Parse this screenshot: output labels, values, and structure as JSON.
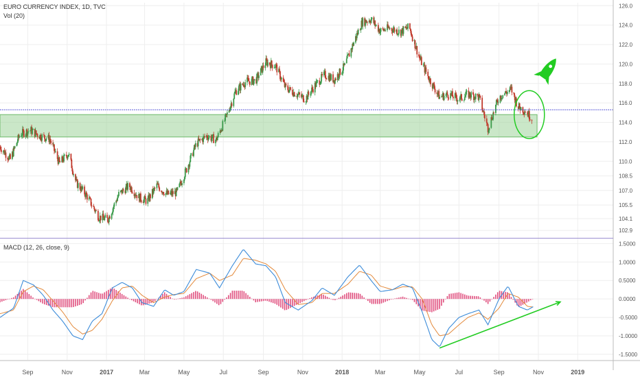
{
  "header": {
    "symbol_line": "EURO CURRENCY INDEX, 1D, TVC",
    "volume_line": "Vol (20)"
  },
  "indicator": {
    "label": "MACD (12, 26, close, 9)"
  },
  "colors": {
    "up_candle": "#3a9a4a",
    "down_candle": "#c0392b",
    "support_zone": "#9fd39a",
    "support_zone_border": "#6db96a",
    "resistance_line": "#5b5bd6",
    "macd_line": "#3b8bd9",
    "signal_line": "#e3893a",
    "histogram": "#e0507f",
    "annotation": "#22cc22",
    "grid": "#eeeeee"
  },
  "chart_data": [
    {
      "type": "candlestick",
      "title": "EURO CURRENCY INDEX, 1D, TVC",
      "ylim": [
        102.2,
        126.3
      ],
      "y_ticks": [
        "126.0",
        "124.0",
        "122.0",
        "120.0",
        "118.0",
        "116.0",
        "114.0",
        "112.0",
        "110.0",
        "108.5",
        "107.0",
        "105.5",
        "104.1",
        "102.9"
      ],
      "y_tick_values": [
        126.0,
        124.0,
        122.0,
        120.0,
        118.0,
        116.0,
        114.0,
        112.0,
        110.0,
        108.5,
        107.0,
        105.5,
        104.1,
        102.9
      ],
      "x_ticks": [
        "Sep",
        "Nov",
        "2017",
        "Mar",
        "May",
        "Jul",
        "Sep",
        "Nov",
        "2018",
        "Mar",
        "May",
        "Jul",
        "Sep",
        "Nov",
        "2019"
      ],
      "x_tick_dates": [
        "2016-09-01",
        "2016-11-01",
        "2017-01-01",
        "2017-03-01",
        "2017-05-01",
        "2017-07-01",
        "2017-09-01",
        "2017-11-01",
        "2018-01-01",
        "2018-03-01",
        "2018-05-01",
        "2018-07-01",
        "2018-09-01",
        "2018-11-01",
        "2019-01-01"
      ],
      "x_range": [
        "2016-07-20",
        "2019-02-25"
      ],
      "trend_points": [
        [
          "2016-07-20",
          111.5
        ],
        [
          "2016-08-05",
          110.2
        ],
        [
          "2016-08-20",
          112.8
        ],
        [
          "2016-09-05",
          113.2
        ],
        [
          "2016-09-20",
          112.6
        ],
        [
          "2016-10-05",
          112.3
        ],
        [
          "2016-10-20",
          109.8
        ],
        [
          "2016-11-03",
          110.8
        ],
        [
          "2016-11-15",
          107.8
        ],
        [
          "2016-12-01",
          106.5
        ],
        [
          "2016-12-20",
          104.3
        ],
        [
          "2017-01-03",
          104.0
        ],
        [
          "2017-01-20",
          106.6
        ],
        [
          "2017-02-05",
          107.5
        ],
        [
          "2017-02-20",
          106.3
        ],
        [
          "2017-03-05",
          105.9
        ],
        [
          "2017-03-20",
          107.5
        ],
        [
          "2017-04-05",
          106.6
        ],
        [
          "2017-04-20",
          106.8
        ],
        [
          "2017-05-05",
          109.2
        ],
        [
          "2017-05-20",
          111.8
        ],
        [
          "2017-06-05",
          112.6
        ],
        [
          "2017-06-20",
          112.2
        ],
        [
          "2017-07-05",
          114.5
        ],
        [
          "2017-07-20",
          117.2
        ],
        [
          "2017-08-05",
          118.2
        ],
        [
          "2017-08-20",
          118.3
        ],
        [
          "2017-09-05",
          120.2
        ],
        [
          "2017-09-20",
          119.8
        ],
        [
          "2017-10-05",
          117.6
        ],
        [
          "2017-10-20",
          117.0
        ],
        [
          "2017-11-05",
          116.4
        ],
        [
          "2017-11-20",
          117.8
        ],
        [
          "2017-12-05",
          118.9
        ],
        [
          "2017-12-20",
          118.4
        ],
        [
          "2018-01-05",
          119.8
        ],
        [
          "2018-01-20",
          122.4
        ],
        [
          "2018-02-01",
          124.3
        ],
        [
          "2018-02-15",
          124.6
        ],
        [
          "2018-03-01",
          123.4
        ],
        [
          "2018-03-15",
          123.7
        ],
        [
          "2018-04-01",
          123.3
        ],
        [
          "2018-04-15",
          123.8
        ],
        [
          "2018-05-01",
          120.6
        ],
        [
          "2018-05-15",
          118.6
        ],
        [
          "2018-06-01",
          116.6
        ],
        [
          "2018-06-15",
          116.9
        ],
        [
          "2018-07-01",
          116.4
        ],
        [
          "2018-07-15",
          116.9
        ],
        [
          "2018-08-01",
          116.6
        ],
        [
          "2018-08-15",
          113.4
        ],
        [
          "2018-09-01",
          116.6
        ],
        [
          "2018-09-20",
          117.4
        ],
        [
          "2018-10-01",
          115.6
        ],
        [
          "2018-10-12",
          115.2
        ],
        [
          "2018-10-22",
          114.4
        ]
      ],
      "support_zone": {
        "from": "2016-07-20",
        "to": "2018-10-30",
        "y_low": 112.5,
        "y_high": 114.8
      },
      "resistance_line": 115.3
    },
    {
      "type": "line",
      "title": "MACD (12, 26, close, 9)",
      "ylim": [
        -1.65,
        1.6
      ],
      "y_ticks": [
        "1.5000",
        "1.0000",
        "0.5000",
        "0.0000",
        "-0.5000",
        "-1.0000",
        "-1.5000"
      ],
      "y_tick_values": [
        1.5,
        1.0,
        0.5,
        0.0,
        -0.5,
        -1.0,
        -1.5
      ],
      "series": [
        {
          "role": "macd",
          "points": [
            [
              "2016-07-20",
              -0.5
            ],
            [
              "2016-08-10",
              -0.25
            ],
            [
              "2016-08-25",
              0.5
            ],
            [
              "2016-09-10",
              0.38
            ],
            [
              "2016-09-25",
              0.1
            ],
            [
              "2016-10-10",
              -0.3
            ],
            [
              "2016-10-25",
              -0.6
            ],
            [
              "2016-11-10",
              -1.0
            ],
            [
              "2016-11-25",
              -1.1
            ],
            [
              "2016-12-10",
              -0.6
            ],
            [
              "2016-12-25",
              -0.4
            ],
            [
              "2017-01-10",
              0.3
            ],
            [
              "2017-01-25",
              0.45
            ],
            [
              "2017-02-10",
              0.3
            ],
            [
              "2017-02-25",
              -0.1
            ],
            [
              "2017-03-15",
              -0.2
            ],
            [
              "2017-04-01",
              0.25
            ],
            [
              "2017-04-15",
              0.1
            ],
            [
              "2017-05-01",
              0.2
            ],
            [
              "2017-05-20",
              0.8
            ],
            [
              "2017-06-10",
              0.7
            ],
            [
              "2017-06-25",
              0.3
            ],
            [
              "2017-07-15",
              0.9
            ],
            [
              "2017-08-01",
              1.35
            ],
            [
              "2017-08-20",
              0.95
            ],
            [
              "2017-09-05",
              0.9
            ],
            [
              "2017-09-20",
              0.6
            ],
            [
              "2017-10-05",
              -0.1
            ],
            [
              "2017-10-25",
              -0.3
            ],
            [
              "2017-11-15",
              -0.05
            ],
            [
              "2017-12-01",
              0.3
            ],
            [
              "2017-12-20",
              0.1
            ],
            [
              "2018-01-10",
              0.6
            ],
            [
              "2018-01-28",
              0.92
            ],
            [
              "2018-02-15",
              0.5
            ],
            [
              "2018-03-01",
              0.2
            ],
            [
              "2018-03-20",
              0.25
            ],
            [
              "2018-04-05",
              0.4
            ],
            [
              "2018-04-20",
              0.3
            ],
            [
              "2018-05-05",
              -0.35
            ],
            [
              "2018-05-20",
              -1.1
            ],
            [
              "2018-06-01",
              -1.3
            ],
            [
              "2018-06-15",
              -0.8
            ],
            [
              "2018-07-01",
              -0.5
            ],
            [
              "2018-07-15",
              -0.4
            ],
            [
              "2018-08-01",
              -0.3
            ],
            [
              "2018-08-15",
              -0.7
            ],
            [
              "2018-09-01",
              0.0
            ],
            [
              "2018-09-15",
              0.35
            ],
            [
              "2018-10-01",
              -0.2
            ],
            [
              "2018-10-15",
              -0.3
            ],
            [
              "2018-10-25",
              -0.2
            ]
          ]
        },
        {
          "role": "signal",
          "points": [
            [
              "2016-07-20",
              -0.4
            ],
            [
              "2016-08-10",
              -0.3
            ],
            [
              "2016-08-25",
              0.2
            ],
            [
              "2016-09-10",
              0.35
            ],
            [
              "2016-09-25",
              0.25
            ],
            [
              "2016-10-10",
              -0.05
            ],
            [
              "2016-10-25",
              -0.35
            ],
            [
              "2016-11-10",
              -0.75
            ],
            [
              "2016-11-25",
              -0.95
            ],
            [
              "2016-12-10",
              -0.85
            ],
            [
              "2016-12-25",
              -0.55
            ],
            [
              "2017-01-10",
              -0.05
            ],
            [
              "2017-01-25",
              0.3
            ],
            [
              "2017-02-10",
              0.35
            ],
            [
              "2017-02-25",
              0.1
            ],
            [
              "2017-03-15",
              -0.1
            ],
            [
              "2017-04-01",
              0.05
            ],
            [
              "2017-04-15",
              0.12
            ],
            [
              "2017-05-01",
              0.15
            ],
            [
              "2017-05-20",
              0.55
            ],
            [
              "2017-06-10",
              0.7
            ],
            [
              "2017-06-25",
              0.5
            ],
            [
              "2017-07-15",
              0.65
            ],
            [
              "2017-08-01",
              1.1
            ],
            [
              "2017-08-20",
              1.05
            ],
            [
              "2017-09-05",
              0.95
            ],
            [
              "2017-09-20",
              0.75
            ],
            [
              "2017-10-05",
              0.25
            ],
            [
              "2017-10-25",
              -0.15
            ],
            [
              "2017-11-15",
              -0.1
            ],
            [
              "2017-12-01",
              0.15
            ],
            [
              "2017-12-20",
              0.15
            ],
            [
              "2018-01-10",
              0.4
            ],
            [
              "2018-01-28",
              0.75
            ],
            [
              "2018-02-15",
              0.65
            ],
            [
              "2018-03-01",
              0.35
            ],
            [
              "2018-03-20",
              0.25
            ],
            [
              "2018-04-05",
              0.33
            ],
            [
              "2018-04-20",
              0.33
            ],
            [
              "2018-05-05",
              0.0
            ],
            [
              "2018-05-20",
              -0.7
            ],
            [
              "2018-06-01",
              -1.0
            ],
            [
              "2018-06-15",
              -0.95
            ],
            [
              "2018-07-01",
              -0.7
            ],
            [
              "2018-07-15",
              -0.5
            ],
            [
              "2018-08-01",
              -0.38
            ],
            [
              "2018-08-15",
              -0.55
            ],
            [
              "2018-09-01",
              -0.25
            ],
            [
              "2018-09-15",
              0.15
            ],
            [
              "2018-10-01",
              0.05
            ],
            [
              "2018-10-15",
              -0.2
            ],
            [
              "2018-10-25",
              -0.22
            ]
          ]
        }
      ],
      "histogram_note": "difference of macd and signal"
    }
  ],
  "annotations": {
    "support_ellipse": {
      "date": "2018-10-18",
      "y": 114.8
    },
    "rocket_symbol": {
      "date": "2018-11-15",
      "y": 119.3
    },
    "macd_trendline": {
      "from": [
        "2018-06-01",
        -1.33
      ],
      "to": [
        "2018-12-05",
        -0.08
      ]
    }
  }
}
